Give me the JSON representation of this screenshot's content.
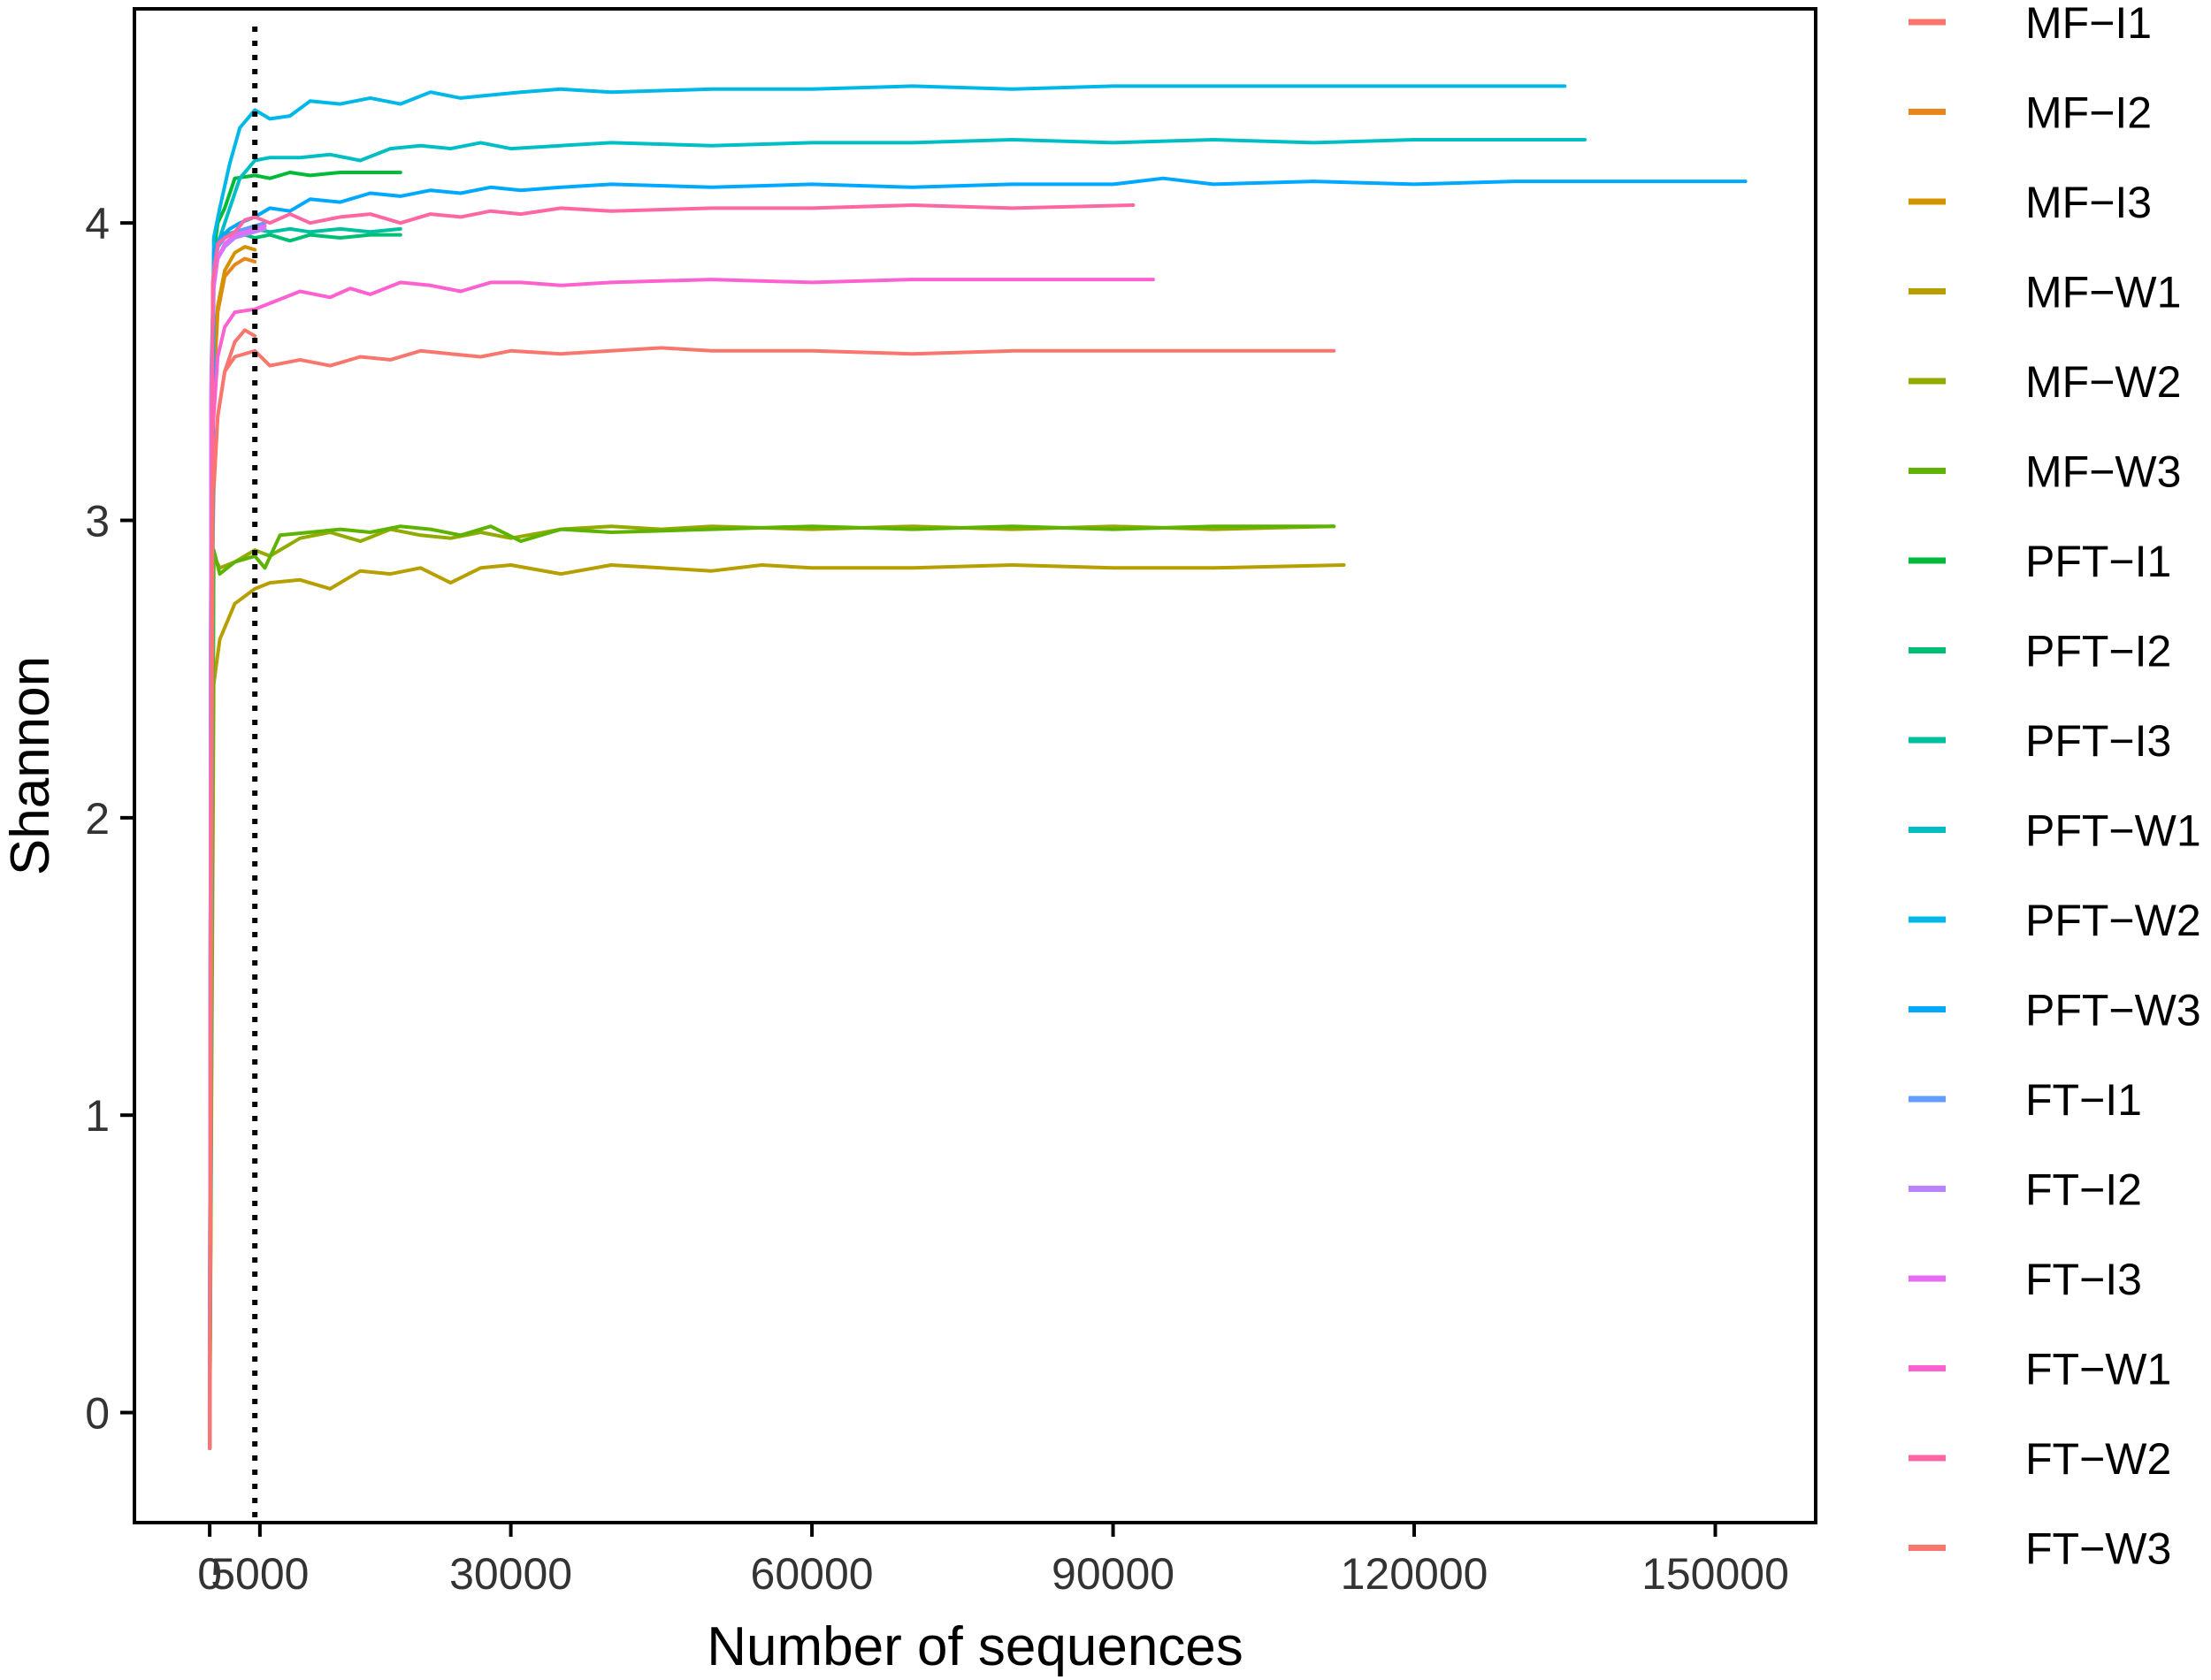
{
  "chart_data": {
    "type": "line",
    "title": "",
    "xlabel": "Number of sequences",
    "ylabel": "Shannon",
    "xlim": [
      -7500,
      160000
    ],
    "ylim": [
      -0.37,
      4.72
    ],
    "x_ticks": [
      0,
      5000,
      30000,
      60000,
      90000,
      120000,
      150000
    ],
    "x_tick_labels": [
      "0",
      "5000",
      "30000",
      "60000",
      "90000",
      "120000",
      "150000"
    ],
    "y_ticks": [
      0,
      1,
      2,
      3,
      4
    ],
    "y_tick_labels": [
      "0",
      "1",
      "2",
      "3",
      "4"
    ],
    "reference_line": {
      "x": 4500,
      "style": "dotted",
      "color": "#000000"
    },
    "grid": false,
    "legend_position": "right",
    "series": [
      {
        "name": "MF−I1",
        "color": "#F8766D",
        "x": [
          0,
          150,
          400,
          800,
          1500,
          2500,
          3500,
          4500
        ],
        "y": [
          -0.12,
          2.6,
          3.1,
          3.35,
          3.5,
          3.6,
          3.64,
          3.62
        ]
      },
      {
        "name": "MF−I2",
        "color": "#E7861B",
        "x": [
          0,
          150,
          400,
          800,
          1500,
          2500,
          3500,
          4500
        ],
        "y": [
          -0.12,
          3.0,
          3.45,
          3.7,
          3.82,
          3.86,
          3.88,
          3.87
        ]
      },
      {
        "name": "MF−I3",
        "color": "#D39200",
        "x": [
          0,
          150,
          400,
          800,
          1500,
          2500,
          3500,
          4500
        ],
        "y": [
          -0.12,
          3.1,
          3.5,
          3.72,
          3.84,
          3.9,
          3.92,
          3.91
        ]
      },
      {
        "name": "MF−W1",
        "color": "#B79F00",
        "x": [
          0,
          400,
          1000,
          2500,
          4500,
          6000,
          9000,
          12000,
          15000,
          18000,
          21000,
          24000,
          27000,
          30000,
          35000,
          40000,
          45000,
          50000,
          55000,
          60000,
          70000,
          80000,
          90000,
          100000,
          113000
        ],
        "y": [
          -0.12,
          2.45,
          2.6,
          2.72,
          2.77,
          2.79,
          2.8,
          2.77,
          2.83,
          2.82,
          2.84,
          2.79,
          2.84,
          2.85,
          2.82,
          2.85,
          2.84,
          2.83,
          2.85,
          2.84,
          2.84,
          2.85,
          2.84,
          2.84,
          2.85
        ]
      },
      {
        "name": "MF−W2",
        "color": "#93AA00",
        "x": [
          0,
          400,
          1000,
          2500,
          4500,
          6000,
          9000,
          12000,
          15000,
          18000,
          21000,
          24000,
          27000,
          30000,
          35000,
          40000,
          45000,
          50000,
          60000,
          70000,
          80000,
          90000,
          100000,
          112000
        ],
        "y": [
          -0.12,
          2.88,
          2.84,
          2.86,
          2.9,
          2.88,
          2.94,
          2.96,
          2.93,
          2.97,
          2.95,
          2.94,
          2.96,
          2.94,
          2.97,
          2.98,
          2.97,
          2.98,
          2.97,
          2.98,
          2.97,
          2.98,
          2.97,
          2.98
        ]
      },
      {
        "name": "MF−W3",
        "color": "#5EB300",
        "x": [
          0,
          400,
          1000,
          2500,
          4500,
          5500,
          7000,
          10000,
          13000,
          16000,
          19000,
          22000,
          25000,
          28000,
          31000,
          35000,
          40000,
          50000,
          60000,
          70000,
          80000,
          90000,
          100000,
          112000
        ],
        "y": [
          -0.12,
          2.9,
          2.82,
          2.86,
          2.88,
          2.84,
          2.95,
          2.96,
          2.97,
          2.96,
          2.98,
          2.97,
          2.95,
          2.98,
          2.93,
          2.97,
          2.96,
          2.97,
          2.98,
          2.97,
          2.98,
          2.97,
          2.98,
          2.98
        ]
      },
      {
        "name": "PFT−I1",
        "color": "#00BA38",
        "x": [
          0,
          150,
          400,
          800,
          1500,
          2500,
          4500,
          6000,
          8000,
          10000,
          13000,
          16000,
          19000
        ],
        "y": [
          -0.12,
          3.4,
          3.9,
          4.0,
          4.05,
          4.15,
          4.16,
          4.15,
          4.17,
          4.16,
          4.17,
          4.17,
          4.17
        ]
      },
      {
        "name": "PFT−I2",
        "color": "#00BF74",
        "x": [
          0,
          150,
          400,
          800,
          1500,
          2500,
          4500,
          6000,
          8000,
          10000,
          13000,
          16000,
          19000
        ],
        "y": [
          -0.12,
          3.4,
          3.85,
          3.92,
          3.95,
          3.97,
          3.95,
          3.96,
          3.94,
          3.96,
          3.95,
          3.96,
          3.96
        ]
      },
      {
        "name": "PFT−I3",
        "color": "#00C19F",
        "x": [
          0,
          150,
          400,
          800,
          1500,
          2500,
          4500,
          6000,
          8000,
          10000,
          13000,
          16000,
          19000
        ],
        "y": [
          -0.12,
          3.4,
          3.85,
          3.92,
          3.96,
          3.97,
          3.98,
          3.97,
          3.98,
          3.97,
          3.98,
          3.97,
          3.98
        ]
      },
      {
        "name": "PFT−W1",
        "color": "#00BFC4",
        "x": [
          0,
          400,
          1000,
          2000,
          3000,
          4500,
          6000,
          9000,
          12000,
          15000,
          18000,
          21000,
          24000,
          27000,
          30000,
          35000,
          40000,
          50000,
          60000,
          70000,
          80000,
          90000,
          100000,
          110000,
          120000,
          137000
        ],
        "y": [
          -0.12,
          3.85,
          3.95,
          4.05,
          4.15,
          4.21,
          4.22,
          4.22,
          4.23,
          4.21,
          4.25,
          4.26,
          4.25,
          4.27,
          4.25,
          4.26,
          4.27,
          4.26,
          4.27,
          4.27,
          4.28,
          4.27,
          4.28,
          4.27,
          4.28,
          4.28
        ]
      },
      {
        "name": "PFT−W2",
        "color": "#00B8E7",
        "x": [
          0,
          400,
          1000,
          2000,
          3000,
          4500,
          6000,
          8000,
          10000,
          13000,
          16000,
          19000,
          22000,
          25000,
          28000,
          31000,
          35000,
          40000,
          50000,
          60000,
          70000,
          80000,
          90000,
          100000,
          110000,
          120000,
          135000
        ],
        "y": [
          -0.12,
          3.95,
          4.05,
          4.2,
          4.32,
          4.38,
          4.35,
          4.36,
          4.41,
          4.4,
          4.42,
          4.4,
          4.44,
          4.42,
          4.43,
          4.44,
          4.45,
          4.44,
          4.45,
          4.45,
          4.46,
          4.45,
          4.46,
          4.46,
          4.46,
          4.46,
          4.46
        ]
      },
      {
        "name": "PFT−W3",
        "color": "#00A9FF",
        "x": [
          0,
          400,
          1000,
          2000,
          3000,
          4500,
          6000,
          8000,
          10000,
          13000,
          16000,
          19000,
          22000,
          25000,
          28000,
          31000,
          35000,
          40000,
          50000,
          60000,
          70000,
          80000,
          90000,
          95000,
          100000,
          110000,
          120000,
          130000,
          140000,
          153000
        ],
        "y": [
          -0.12,
          3.9,
          3.95,
          3.98,
          4.0,
          4.02,
          4.05,
          4.04,
          4.08,
          4.07,
          4.1,
          4.09,
          4.11,
          4.1,
          4.12,
          4.11,
          4.12,
          4.13,
          4.12,
          4.13,
          4.12,
          4.13,
          4.13,
          4.15,
          4.13,
          4.14,
          4.13,
          4.14,
          4.14,
          4.14
        ]
      },
      {
        "name": "FT−I1",
        "color": "#619CFF",
        "x": [
          0,
          150,
          400,
          800,
          1500,
          2500,
          4500,
          5500
        ],
        "y": [
          -0.12,
          3.5,
          3.85,
          3.92,
          3.95,
          3.97,
          3.99,
          4.0
        ]
      },
      {
        "name": "FT−I2",
        "color": "#B983FF",
        "x": [
          0,
          150,
          400,
          800,
          1500,
          2500,
          4500,
          5500
        ],
        "y": [
          -0.12,
          3.45,
          3.8,
          3.88,
          3.92,
          3.95,
          3.97,
          3.98
        ]
      },
      {
        "name": "FT−I3",
        "color": "#E76BF3",
        "x": [
          0,
          150,
          400,
          800,
          1500,
          2500,
          4500,
          5500
        ],
        "y": [
          -0.12,
          3.4,
          3.78,
          3.88,
          3.93,
          3.96,
          3.98,
          3.99
        ]
      },
      {
        "name": "FT−W1",
        "color": "#FD61D1",
        "x": [
          0,
          300,
          800,
          1500,
          2500,
          4500,
          6000,
          9000,
          12000,
          14000,
          16000,
          19000,
          22000,
          25000,
          28000,
          31000,
          35000,
          40000,
          50000,
          60000,
          70000,
          80000,
          94000
        ],
        "y": [
          -0.12,
          3.3,
          3.55,
          3.65,
          3.7,
          3.71,
          3.73,
          3.77,
          3.75,
          3.78,
          3.76,
          3.8,
          3.79,
          3.77,
          3.8,
          3.8,
          3.79,
          3.8,
          3.81,
          3.8,
          3.81,
          3.81,
          3.81
        ]
      },
      {
        "name": "FT−W2",
        "color": "#FF67A4",
        "x": [
          0,
          300,
          800,
          1500,
          2500,
          3500,
          4500,
          6000,
          8000,
          10000,
          13000,
          16000,
          19000,
          22000,
          25000,
          28000,
          31000,
          35000,
          40000,
          50000,
          60000,
          70000,
          80000,
          92000
        ],
        "y": [
          -0.12,
          3.8,
          3.93,
          3.95,
          3.97,
          4.01,
          4.02,
          4.0,
          4.03,
          4.0,
          4.02,
          4.03,
          4.0,
          4.03,
          4.02,
          4.04,
          4.03,
          4.05,
          4.04,
          4.05,
          4.05,
          4.06,
          4.05,
          4.06
        ]
      },
      {
        "name": "FT−W3",
        "color": "#F8766D",
        "x": [
          0,
          300,
          800,
          1500,
          2500,
          4500,
          6000,
          9000,
          12000,
          15000,
          18000,
          21000,
          24000,
          27000,
          30000,
          35000,
          40000,
          45000,
          50000,
          60000,
          70000,
          80000,
          90000,
          100000,
          112000
        ],
        "y": [
          -0.12,
          3.1,
          3.35,
          3.5,
          3.55,
          3.57,
          3.52,
          3.54,
          3.52,
          3.55,
          3.54,
          3.57,
          3.56,
          3.55,
          3.57,
          3.56,
          3.57,
          3.58,
          3.57,
          3.57,
          3.56,
          3.57,
          3.57,
          3.57,
          3.57
        ]
      }
    ]
  }
}
